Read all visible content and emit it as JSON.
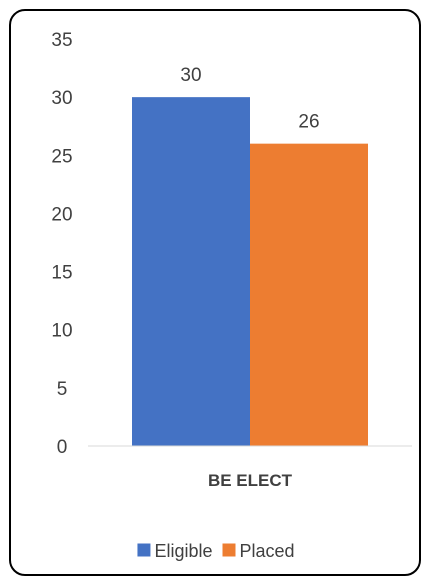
{
  "chart_data": {
    "type": "bar",
    "categories": [
      "BE ELECT"
    ],
    "series": [
      {
        "name": "Eligible",
        "values": [
          30
        ],
        "color": "#4472C4"
      },
      {
        "name": "Placed",
        "values": [
          26
        ],
        "color": "#ED7D31"
      }
    ],
    "title": "",
    "xlabel": "",
    "ylabel": "",
    "ylim": [
      0,
      35
    ],
    "yticks": [
      0,
      5,
      10,
      15,
      20,
      25,
      30,
      35
    ],
    "grid": false,
    "data_labels": true,
    "legend_position": "bottom"
  }
}
